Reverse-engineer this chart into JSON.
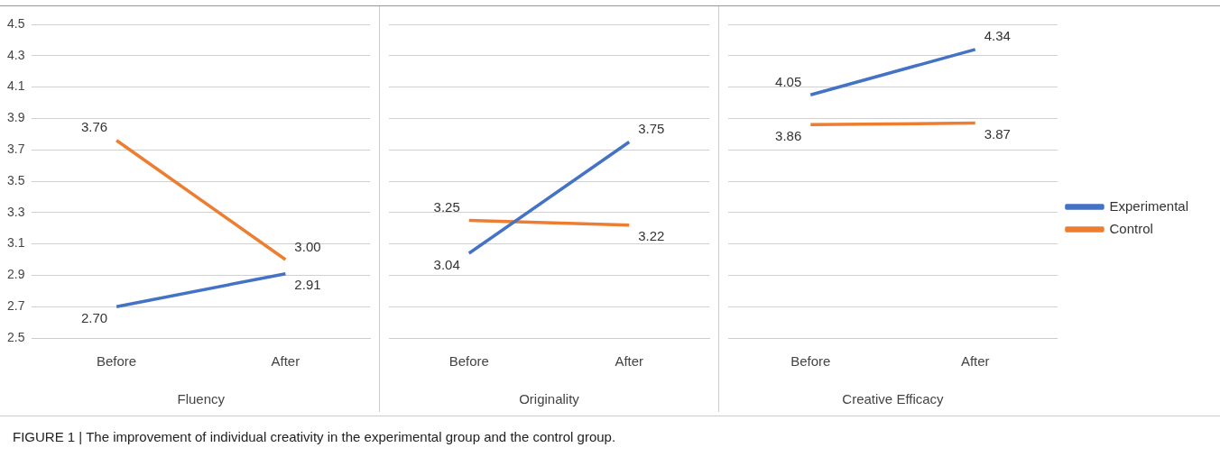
{
  "chart_data": [
    {
      "type": "line",
      "xlabel": "Fluency",
      "categories": [
        "Before",
        "After"
      ],
      "ylim": [
        2.5,
        4.5
      ],
      "yticks": [
        2.5,
        2.7,
        2.9,
        3.1,
        3.3,
        3.5,
        3.7,
        3.9,
        4.1,
        4.3,
        4.5
      ],
      "grid": "y",
      "legend": false,
      "marker": "none",
      "line_style": "solid",
      "series": [
        {
          "color": "#4472c4",
          "values": [
            2.7,
            2.91
          ],
          "value_labels": [
            "2.70",
            "2.91"
          ]
        },
        {
          "color": "#ed7d31",
          "values": [
            3.76,
            3.0
          ],
          "value_labels": [
            "3.76",
            "3.00"
          ]
        }
      ],
      "annotations": [
        "FIGURE 1 | The improvement of individual creativity in the experimental group and the control group."
      ]
    },
    {
      "type": "line",
      "xlabel": "Originality",
      "categories": [
        "Before",
        "After"
      ],
      "ylim": [
        2.5,
        4.5
      ],
      "yticks": [
        2.5,
        2.7,
        2.9,
        3.1,
        3.3,
        3.5,
        3.7,
        3.9,
        4.1,
        4.3,
        4.5
      ],
      "grid": "y",
      "legend": false,
      "marker": "none",
      "line_style": "solid",
      "tick_labels": "x",
      "series": [
        {
          "color": "#4472c4",
          "values": [
            3.04,
            3.75
          ],
          "value_labels": [
            "3.04",
            "3.75"
          ]
        },
        {
          "color": "#ed7d31",
          "values": [
            3.25,
            3.22
          ],
          "value_labels": [
            "3.25",
            "3.22"
          ]
        }
      ]
    },
    {
      "type": "line",
      "xlabel": "Creative Efficacy",
      "categories": [
        "Before",
        "After"
      ],
      "ylim": [
        2.5,
        4.5
      ],
      "yticks": [
        2.5,
        2.7,
        2.9,
        3.1,
        3.3,
        3.5,
        3.7,
        3.9,
        4.1,
        4.3,
        4.5
      ],
      "grid": "y",
      "legend": "right",
      "marker": "none",
      "line_style": "solid",
      "tick_labels": "x",
      "series": [
        {
          "name": "Experimental",
          "color": "#4472c4",
          "values": [
            4.05,
            4.34
          ],
          "value_labels": [
            "4.05",
            "4.34"
          ]
        },
        {
          "name": "Control",
          "color": "#ed7d31",
          "values": [
            3.86,
            3.87
          ],
          "value_labels": [
            "3.86",
            "3.87"
          ]
        }
      ]
    }
  ]
}
